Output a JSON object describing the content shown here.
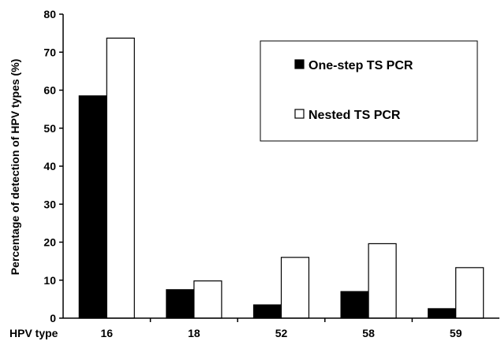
{
  "chart_data": {
    "type": "bar",
    "title": "",
    "xlabel": "HPV type",
    "ylabel": "Percentage of detection of HPV types (%)",
    "categories": [
      "16",
      "18",
      "52",
      "58",
      "59"
    ],
    "ylim": [
      0,
      80
    ],
    "yticks": [
      "0",
      "10",
      "20",
      "30",
      "40",
      "50",
      "60",
      "70",
      "80"
    ],
    "grid": false,
    "legend_position": "top-right",
    "series": [
      {
        "name": "One-step TS PCR",
        "values": [
          58.5,
          7.5,
          3.5,
          7,
          2.5
        ],
        "color": "#000000"
      },
      {
        "name": "Nested TS PCR",
        "values": [
          73.7,
          9.8,
          16,
          19.6,
          13.3
        ],
        "color": "#ffffff"
      }
    ]
  }
}
